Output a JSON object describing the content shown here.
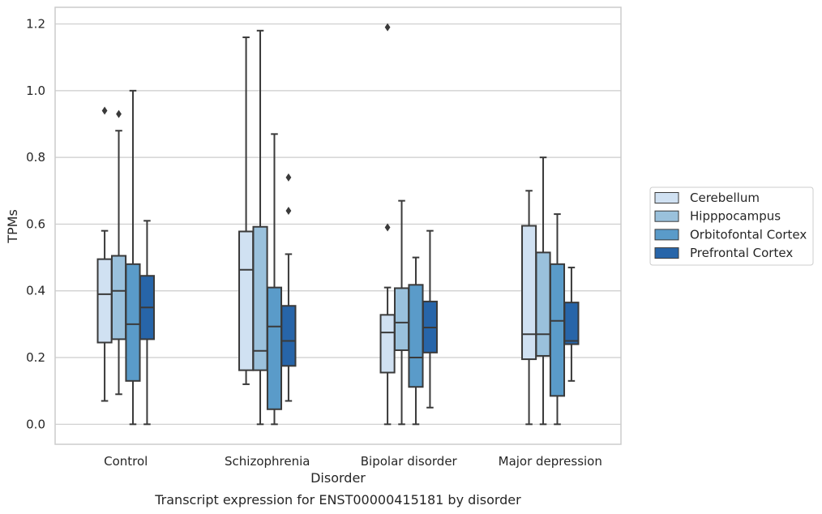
{
  "caption": "Transcript expression for ENST00000415181 by disorder",
  "chart_data": {
    "type": "box",
    "title": "",
    "xlabel": "Disorder",
    "ylabel": "TPMs",
    "ylim": [
      -0.06,
      1.25
    ],
    "yticks": [
      0.0,
      0.2,
      0.4,
      0.6,
      0.8,
      1.0,
      1.2
    ],
    "ytick_labels": [
      "0.0",
      "0.2",
      "0.4",
      "0.6",
      "0.8",
      "1.0",
      "1.2"
    ],
    "grid": "horizontal",
    "legend_position": "right",
    "categories": [
      "Control",
      "Schizophrenia",
      "Bipolar disorder",
      "Major depression"
    ],
    "series": [
      {
        "name": "Cerebellum",
        "color": "#d0e1f2",
        "boxes": [
          {
            "whisker_low": 0.07,
            "q1": 0.245,
            "median": 0.39,
            "q3": 0.495,
            "whisker_high": 0.58,
            "outliers": [
              0.94
            ]
          },
          {
            "whisker_low": 0.12,
            "q1": 0.162,
            "median": 0.463,
            "q3": 0.578,
            "whisker_high": 1.16,
            "outliers": []
          },
          {
            "whisker_low": 0.0,
            "q1": 0.155,
            "median": 0.275,
            "q3": 0.328,
            "whisker_high": 0.41,
            "outliers": [
              0.59,
              1.19
            ]
          },
          {
            "whisker_low": 0.0,
            "q1": 0.195,
            "median": 0.27,
            "q3": 0.595,
            "whisker_high": 0.7,
            "outliers": []
          }
        ]
      },
      {
        "name": "Hipppocampus",
        "color": "#9ac1dc",
        "boxes": [
          {
            "whisker_low": 0.09,
            "q1": 0.255,
            "median": 0.4,
            "q3": 0.505,
            "whisker_high": 0.88,
            "outliers": [
              0.93
            ]
          },
          {
            "whisker_low": 0.0,
            "q1": 0.162,
            "median": 0.22,
            "q3": 0.592,
            "whisker_high": 1.18,
            "outliers": []
          },
          {
            "whisker_low": 0.0,
            "q1": 0.222,
            "median": 0.305,
            "q3": 0.408,
            "whisker_high": 0.67,
            "outliers": []
          },
          {
            "whisker_low": 0.0,
            "q1": 0.205,
            "median": 0.27,
            "q3": 0.515,
            "whisker_high": 0.8,
            "outliers": []
          }
        ]
      },
      {
        "name": "Orbitofontal Cortex",
        "color": "#5a9bc9",
        "boxes": [
          {
            "whisker_low": 0.0,
            "q1": 0.13,
            "median": 0.3,
            "q3": 0.48,
            "whisker_high": 1.0,
            "outliers": []
          },
          {
            "whisker_low": 0.0,
            "q1": 0.045,
            "median": 0.293,
            "q3": 0.41,
            "whisker_high": 0.87,
            "outliers": []
          },
          {
            "whisker_low": 0.0,
            "q1": 0.112,
            "median": 0.2,
            "q3": 0.418,
            "whisker_high": 0.5,
            "outliers": []
          },
          {
            "whisker_low": 0.0,
            "q1": 0.085,
            "median": 0.31,
            "q3": 0.48,
            "whisker_high": 0.63,
            "outliers": []
          }
        ]
      },
      {
        "name": "Prefrontal Cortex",
        "color": "#2765a9",
        "boxes": [
          {
            "whisker_low": 0.0,
            "q1": 0.255,
            "median": 0.35,
            "q3": 0.445,
            "whisker_high": 0.61,
            "outliers": []
          },
          {
            "whisker_low": 0.07,
            "q1": 0.175,
            "median": 0.25,
            "q3": 0.355,
            "whisker_high": 0.51,
            "outliers": [
              0.64,
              0.74
            ]
          },
          {
            "whisker_low": 0.05,
            "q1": 0.215,
            "median": 0.29,
            "q3": 0.368,
            "whisker_high": 0.58,
            "outliers": []
          },
          {
            "whisker_low": 0.13,
            "q1": 0.24,
            "median": 0.25,
            "q3": 0.365,
            "whisker_high": 0.47,
            "outliers": []
          }
        ]
      }
    ]
  },
  "colors": {
    "edge": "#3a3a3a",
    "grid": "#cccccc",
    "frame": "#cccccc",
    "text": "#262626"
  }
}
